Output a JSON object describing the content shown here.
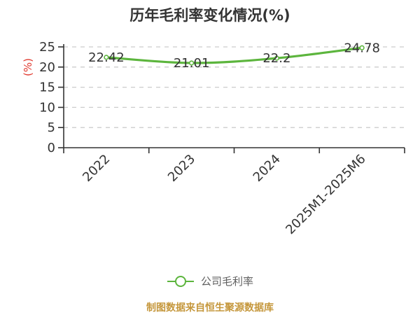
{
  "title": "历年毛利率变化情况(%)",
  "chart_data": {
    "type": "line",
    "categories": [
      "2022",
      "2023",
      "2024",
      "2025M1-2025M6"
    ],
    "series": [
      {
        "name": "公司毛利率",
        "values": [
          22.42,
          21.01,
          22.2,
          24.78
        ],
        "labels": [
          "22.42",
          "21.01",
          "22.2",
          "24.78"
        ]
      }
    ],
    "title": "历年毛利率变化情况(%)",
    "xlabel": "",
    "ylabel": "(%)",
    "ylim": [
      0,
      25
    ],
    "yticks": [
      0,
      5,
      10,
      15,
      20,
      25
    ],
    "grid": "horizontal-dashed",
    "legend_position": "bottom",
    "smooth": true,
    "x_label_rotation": 45
  },
  "legend": {
    "label": "公司毛利率"
  },
  "footer": {
    "text": "制图数据来自恒生聚源数据库"
  },
  "colors": {
    "line": "#5cb53d",
    "marker_fill": "#ffffff",
    "axis": "#333333",
    "grid": "#cccccc",
    "tick_label": "#333333",
    "data_label": "#333333",
    "ylabel_unit": "#e0392e",
    "legend_text": "#5f5f5f",
    "footer_text": "#c5973c",
    "background": "#ffffff"
  }
}
